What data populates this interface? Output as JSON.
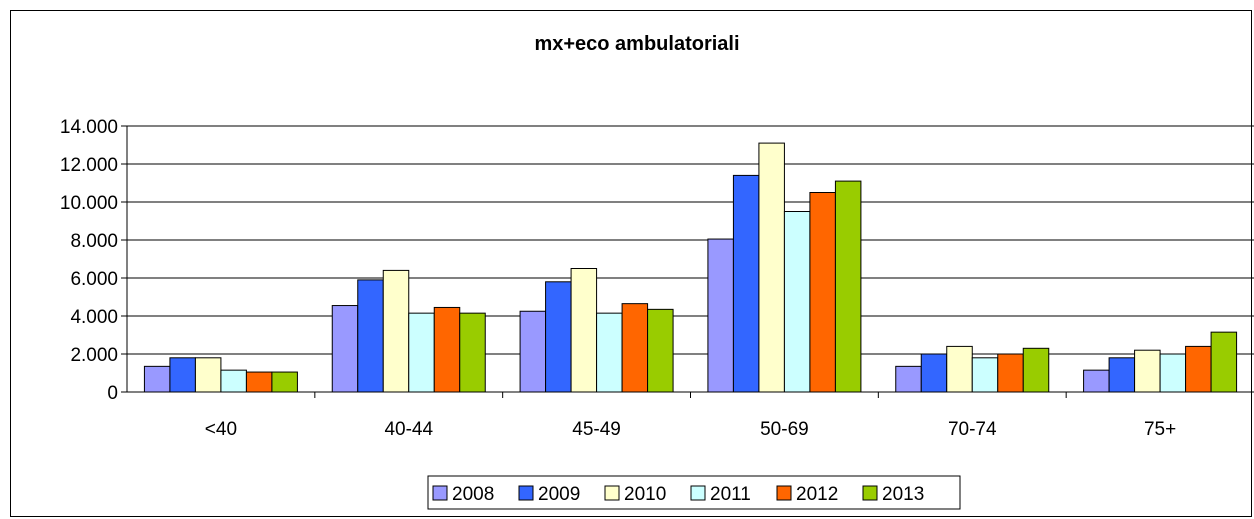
{
  "chart_data": {
    "type": "bar",
    "title": "mx+eco ambulatoriali",
    "xlabel": "",
    "ylabel": "",
    "categories": [
      "<40",
      "40-44",
      "45-49",
      "50-69",
      "70-74",
      "75+"
    ],
    "ylim": [
      0,
      14000
    ],
    "ytick_values": [
      0,
      2000,
      4000,
      6000,
      8000,
      10000,
      12000,
      14000
    ],
    "ytick_labels": [
      "0",
      "2.000",
      "4.000",
      "6.000",
      "8.000",
      "10.000",
      "12.000",
      "14.000"
    ],
    "grid": true,
    "legend_position": "bottom",
    "series": [
      {
        "name": "2008",
        "color": "#9999FF",
        "values": [
          1350,
          4550,
          4250,
          8050,
          1350,
          1150
        ]
      },
      {
        "name": "2009",
        "color": "#3366FF",
        "values": [
          1800,
          5900,
          5800,
          11400,
          2000,
          1800
        ]
      },
      {
        "name": "2010",
        "color": "#FFFFCC",
        "values": [
          1800,
          6400,
          6500,
          13100,
          2400,
          2200
        ]
      },
      {
        "name": "2011",
        "color": "#CCFFFF",
        "values": [
          1150,
          4150,
          4150,
          9500,
          1800,
          2000
        ]
      },
      {
        "name": "2012",
        "color": "#FF6600",
        "values": [
          1050,
          4450,
          4650,
          10500,
          2000,
          2400
        ]
      },
      {
        "name": "2013",
        "color": "#99CC00",
        "values": [
          1050,
          4150,
          4350,
          11100,
          2300,
          3150
        ]
      }
    ]
  }
}
